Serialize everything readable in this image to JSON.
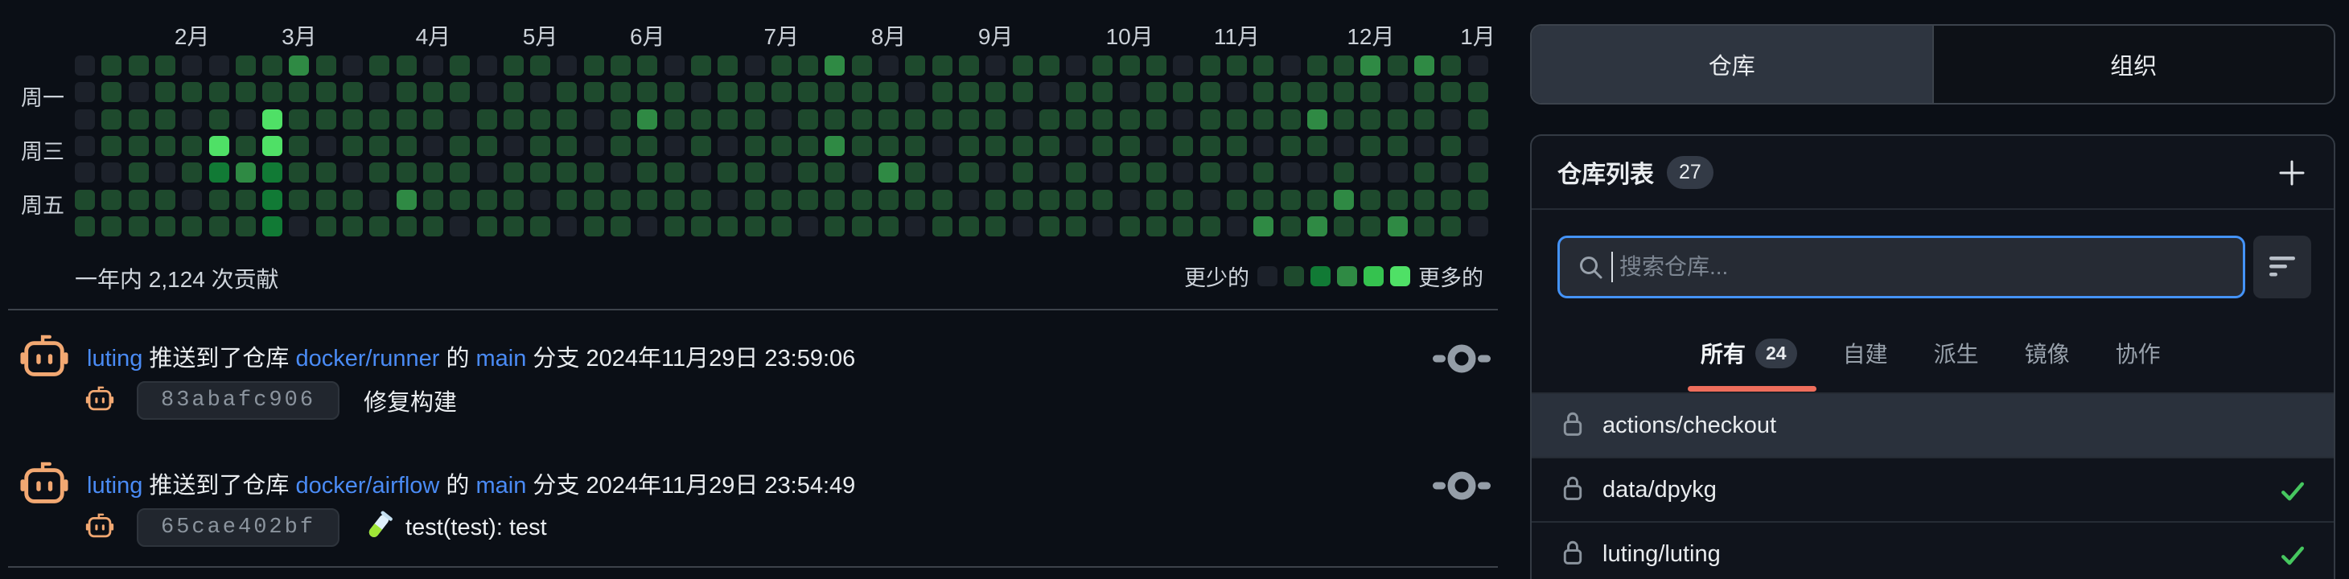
{
  "colors": {
    "background": "#0b0f16",
    "link": "#4a8bf5",
    "accent_underline": "#ee6e5c",
    "search_focus_border": "#4493f8",
    "check_green": "#46c75f",
    "avatar_orange": "#f2a872",
    "heatmap_levels": [
      "#1c212a",
      "#1e4a2d",
      "#117a35",
      "#2f8a44",
      "#35c24f",
      "#4fe066"
    ]
  },
  "heatmap": {
    "summary": "一年内 2,124 次贡献",
    "legend": {
      "less": "更少的",
      "more": "更多的"
    },
    "day_labels": [
      {
        "label": "周一",
        "row": 1
      },
      {
        "label": "周三",
        "row": 3
      },
      {
        "label": "周五",
        "row": 5
      }
    ],
    "months": [
      {
        "label": "2月",
        "week": 4
      },
      {
        "label": "3月",
        "week": 8
      },
      {
        "label": "4月",
        "week": 13
      },
      {
        "label": "5月",
        "week": 17
      },
      {
        "label": "6月",
        "week": 21
      },
      {
        "label": "7月",
        "week": 26
      },
      {
        "label": "8月",
        "week": 30
      },
      {
        "label": "9月",
        "week": 34
      },
      {
        "label": "10月",
        "week": 39
      },
      {
        "label": "11月",
        "week": 43
      },
      {
        "label": "12月",
        "week": 48
      },
      {
        "label": "1月",
        "week": 52
      }
    ],
    "weeks": [
      "0000011",
      "1111011",
      "1011111",
      "1111011",
      "0101101",
      "0115211",
      "1101311",
      "1155222",
      "3111110",
      "1110111",
      "0111011",
      "1011101",
      "1111131",
      "0110111",
      "1101110",
      "0011011",
      "1110111",
      "1011101",
      "0111110",
      "1100111",
      "1111011",
      "1131110",
      "0110111",
      "1011011",
      "1110101",
      "0111111",
      "1101011",
      "1111110",
      "3113111",
      "1111011",
      "0111311",
      "1011110",
      "1110011",
      "1111101",
      "0111011",
      "1101110",
      "1011011",
      "0110111",
      "1111010",
      "1011101",
      "1110111",
      "0101011",
      "1111101",
      "1011010",
      "1110113",
      "0111011",
      "1131013",
      "1110131",
      "3111011",
      "1011013",
      "3110111",
      "1101011",
      "0110110"
    ]
  },
  "feed": {
    "items": [
      {
        "actor": "luting",
        "verb": "推送到了仓库",
        "repo": "docker/runner",
        "particle": "的",
        "branch": "main",
        "branch_word": "分支",
        "timestamp": "2024年11月29日 23:59:06",
        "commit": {
          "hash": "83abafc906",
          "message": "修复构建",
          "icon": null
        }
      },
      {
        "actor": "luting",
        "verb": "推送到了仓库",
        "repo": "docker/airflow",
        "particle": "的",
        "branch": "main",
        "branch_word": "分支",
        "timestamp": "2024年11月29日 23:54:49",
        "commit": {
          "hash": "65cae402bf",
          "message": "test(test): test",
          "icon": "test-tube"
        }
      }
    ]
  },
  "sidebar": {
    "tabs": [
      {
        "label": "仓库",
        "active": true
      },
      {
        "label": "组织",
        "active": false
      }
    ],
    "panel": {
      "title": "仓库列表",
      "count": "27"
    },
    "search": {
      "placeholder": "搜索仓库..."
    },
    "filters": [
      {
        "label": "所有",
        "count": "24",
        "active": true
      },
      {
        "label": "自建",
        "active": false
      },
      {
        "label": "派生",
        "active": false
      },
      {
        "label": "镜像",
        "active": false
      },
      {
        "label": "协作",
        "active": false
      }
    ],
    "repos": [
      {
        "name": "actions/checkout",
        "private": true,
        "checked": false,
        "highlighted": true
      },
      {
        "name": "data/dpykg",
        "private": true,
        "checked": true,
        "highlighted": false
      },
      {
        "name": "luting/luting",
        "private": true,
        "checked": true,
        "highlighted": false
      }
    ]
  }
}
